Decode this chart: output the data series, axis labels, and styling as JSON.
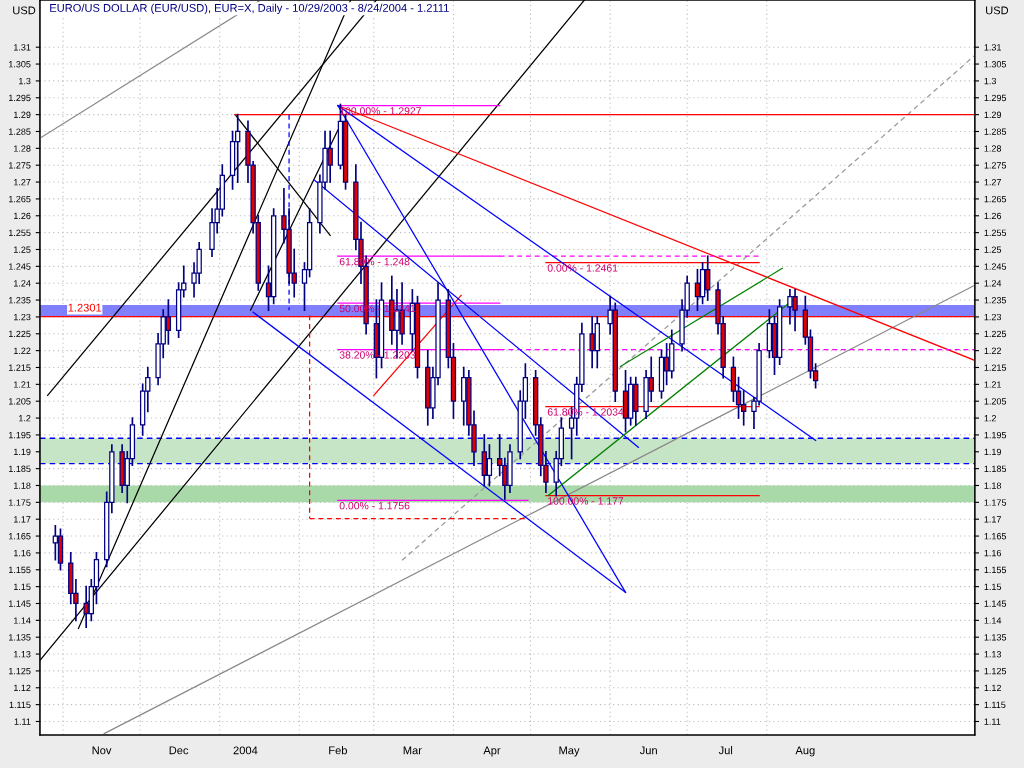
{
  "chart_data": {
    "type": "candlestick",
    "title": "EURO/US DOLLAR (EUR/USD), EUR=X, Daily - 10/29/2003 - 8/24/2004 - 1.2111",
    "ylabel": "USD",
    "y2label": "USD",
    "color": "#000080",
    "x": [
      "2003-10-29",
      "2003-10-31",
      "2003-11-04",
      "2003-11-06",
      "2003-11-10",
      "2003-11-12",
      "2003-11-14",
      "2003-11-18",
      "2003-11-20",
      "2003-11-24",
      "2003-11-26",
      "2003-11-28",
      "2003-12-02",
      "2003-12-04",
      "2003-12-08",
      "2003-12-10",
      "2003-12-12",
      "2003-12-16",
      "2003-12-18",
      "2003-12-22",
      "2003-12-24",
      "2003-12-29",
      "2003-12-31",
      "2004-01-02",
      "2004-01-06",
      "2004-01-08",
      "2004-01-12",
      "2004-01-14",
      "2004-01-16",
      "2004-01-20",
      "2004-01-22",
      "2004-01-26",
      "2004-01-28",
      "2004-01-30",
      "2004-02-03",
      "2004-02-05",
      "2004-02-09",
      "2004-02-11",
      "2004-02-13",
      "2004-02-17",
      "2004-02-19",
      "2004-02-23",
      "2004-02-25",
      "2004-02-27",
      "2004-03-02",
      "2004-03-04",
      "2004-03-08",
      "2004-03-10",
      "2004-03-12",
      "2004-03-16",
      "2004-03-18",
      "2004-03-22",
      "2004-03-24",
      "2004-03-26",
      "2004-03-30",
      "2004-04-01",
      "2004-04-05",
      "2004-04-07",
      "2004-04-09",
      "2004-04-13",
      "2004-04-15",
      "2004-04-19",
      "2004-04-21",
      "2004-04-23",
      "2004-04-27",
      "2004-04-29",
      "2004-05-03",
      "2004-05-05",
      "2004-05-07",
      "2004-05-11",
      "2004-05-13",
      "2004-05-17",
      "2004-05-19",
      "2004-05-21",
      "2004-05-25",
      "2004-05-27",
      "2004-06-01",
      "2004-06-03",
      "2004-06-07",
      "2004-06-09",
      "2004-06-11",
      "2004-06-15",
      "2004-06-17",
      "2004-06-21",
      "2004-06-23",
      "2004-06-25",
      "2004-06-29",
      "2004-07-01",
      "2004-07-05",
      "2004-07-07",
      "2004-07-09",
      "2004-07-13",
      "2004-07-15",
      "2004-07-19",
      "2004-07-21",
      "2004-07-23",
      "2004-07-27",
      "2004-07-29",
      "2004-08-02",
      "2004-08-04",
      "2004-08-06",
      "2004-08-10",
      "2004-08-12",
      "2004-08-16",
      "2004-08-18",
      "2004-08-20"
    ],
    "ohlc": [
      [
        1.163,
        1.168,
        1.158,
        1.165
      ],
      [
        1.165,
        1.167,
        1.155,
        1.157
      ],
      [
        1.157,
        1.16,
        1.145,
        1.148
      ],
      [
        1.148,
        1.152,
        1.14,
        1.145
      ],
      [
        1.145,
        1.15,
        1.138,
        1.142
      ],
      [
        1.142,
        1.152,
        1.14,
        1.15
      ],
      [
        1.15,
        1.16,
        1.145,
        1.158
      ],
      [
        1.158,
        1.178,
        1.156,
        1.175
      ],
      [
        1.175,
        1.192,
        1.172,
        1.19
      ],
      [
        1.19,
        1.192,
        1.178,
        1.18
      ],
      [
        1.18,
        1.19,
        1.175,
        1.188
      ],
      [
        1.188,
        1.2,
        1.186,
        1.198
      ],
      [
        1.198,
        1.21,
        1.195,
        1.208
      ],
      [
        1.208,
        1.215,
        1.202,
        1.212
      ],
      [
        1.212,
        1.225,
        1.21,
        1.222
      ],
      [
        1.222,
        1.232,
        1.218,
        1.23
      ],
      [
        1.23,
        1.235,
        1.222,
        1.226
      ],
      [
        1.226,
        1.24,
        1.224,
        1.238
      ],
      [
        1.238,
        1.245,
        1.236,
        1.24
      ],
      [
        1.24,
        1.246,
        1.236,
        1.243
      ],
      [
        1.243,
        1.252,
        1.24,
        1.25
      ],
      [
        1.25,
        1.262,
        1.248,
        1.258
      ],
      [
        1.258,
        1.268,
        1.255,
        1.262
      ],
      [
        1.262,
        1.275,
        1.26,
        1.272
      ],
      [
        1.272,
        1.285,
        1.268,
        1.282
      ],
      [
        1.282,
        1.29,
        1.27,
        1.285
      ],
      [
        1.285,
        1.288,
        1.27,
        1.275
      ],
      [
        1.275,
        1.276,
        1.255,
        1.258
      ],
      [
        1.258,
        1.26,
        1.238,
        1.24
      ],
      [
        1.24,
        1.245,
        1.232,
        1.236
      ],
      [
        1.236,
        1.262,
        1.234,
        1.26
      ],
      [
        1.26,
        1.268,
        1.252,
        1.256
      ],
      [
        1.256,
        1.262,
        1.24,
        1.243
      ],
      [
        1.243,
        1.25,
        1.236,
        1.24
      ],
      [
        1.24,
        1.246,
        1.232,
        1.244
      ],
      [
        1.244,
        1.262,
        1.242,
        1.258
      ],
      [
        1.258,
        1.272,
        1.255,
        1.27
      ],
      [
        1.27,
        1.285,
        1.268,
        1.28
      ],
      [
        1.28,
        1.285,
        1.27,
        1.275
      ],
      [
        1.275,
        1.293,
        1.274,
        1.288
      ],
      [
        1.288,
        1.29,
        1.268,
        1.27
      ],
      [
        1.27,
        1.275,
        1.25,
        1.253
      ],
      [
        1.253,
        1.258,
        1.24,
        1.245
      ],
      [
        1.245,
        1.248,
        1.225,
        1.228
      ],
      [
        1.228,
        1.235,
        1.212,
        1.218
      ],
      [
        1.218,
        1.24,
        1.215,
        1.235
      ],
      [
        1.235,
        1.242,
        1.222,
        1.226
      ],
      [
        1.226,
        1.238,
        1.218,
        1.232
      ],
      [
        1.232,
        1.24,
        1.222,
        1.225
      ],
      [
        1.225,
        1.238,
        1.22,
        1.234
      ],
      [
        1.234,
        1.236,
        1.212,
        1.215
      ],
      [
        1.215,
        1.22,
        1.198,
        1.203
      ],
      [
        1.203,
        1.215,
        1.2,
        1.212
      ],
      [
        1.212,
        1.24,
        1.21,
        1.235
      ],
      [
        1.235,
        1.238,
        1.215,
        1.218
      ],
      [
        1.218,
        1.222,
        1.2,
        1.205
      ],
      [
        1.205,
        1.215,
        1.198,
        1.212
      ],
      [
        1.212,
        1.214,
        1.195,
        1.198
      ],
      [
        1.198,
        1.202,
        1.186,
        1.19
      ],
      [
        1.19,
        1.195,
        1.18,
        1.183
      ],
      [
        1.183,
        1.192,
        1.18,
        1.188
      ],
      [
        1.188,
        1.195,
        1.183,
        1.186
      ],
      [
        1.186,
        1.188,
        1.176,
        1.18
      ],
      [
        1.18,
        1.192,
        1.178,
        1.19
      ],
      [
        1.19,
        1.208,
        1.188,
        1.205
      ],
      [
        1.205,
        1.216,
        1.2,
        1.212
      ],
      [
        1.212,
        1.214,
        1.195,
        1.198
      ],
      [
        1.198,
        1.2,
        1.183,
        1.186
      ],
      [
        1.186,
        1.19,
        1.178,
        1.181
      ],
      [
        1.181,
        1.19,
        1.177,
        1.188
      ],
      [
        1.188,
        1.2,
        1.186,
        1.197
      ],
      [
        1.197,
        1.203,
        1.188,
        1.2
      ],
      [
        1.2,
        1.212,
        1.195,
        1.21
      ],
      [
        1.21,
        1.228,
        1.208,
        1.225
      ],
      [
        1.225,
        1.23,
        1.215,
        1.22
      ],
      [
        1.22,
        1.23,
        1.215,
        1.228
      ],
      [
        1.228,
        1.236,
        1.225,
        1.232
      ],
      [
        1.232,
        1.234,
        1.205,
        1.208
      ],
      [
        1.208,
        1.214,
        1.196,
        1.2
      ],
      [
        1.2,
        1.212,
        1.198,
        1.21
      ],
      [
        1.21,
        1.212,
        1.198,
        1.202
      ],
      [
        1.202,
        1.214,
        1.2,
        1.212
      ],
      [
        1.212,
        1.218,
        1.205,
        1.208
      ],
      [
        1.208,
        1.22,
        1.206,
        1.218
      ],
      [
        1.218,
        1.222,
        1.21,
        1.214
      ],
      [
        1.214,
        1.226,
        1.212,
        1.222
      ],
      [
        1.222,
        1.235,
        1.22,
        1.232
      ],
      [
        1.232,
        1.242,
        1.23,
        1.24
      ],
      [
        1.24,
        1.244,
        1.232,
        1.236
      ],
      [
        1.236,
        1.246,
        1.234,
        1.244
      ],
      [
        1.244,
        1.248,
        1.235,
        1.238
      ],
      [
        1.238,
        1.24,
        1.225,
        1.228
      ],
      [
        1.228,
        1.23,
        1.212,
        1.215
      ],
      [
        1.215,
        1.218,
        1.205,
        1.208
      ],
      [
        1.208,
        1.212,
        1.2,
        1.204
      ],
      [
        1.204,
        1.208,
        1.198,
        1.202
      ],
      [
        1.202,
        1.206,
        1.197,
        1.205
      ],
      [
        1.205,
        1.222,
        1.204,
        1.22
      ],
      [
        1.22,
        1.232,
        1.218,
        1.228
      ],
      [
        1.228,
        1.23,
        1.213,
        1.218
      ],
      [
        1.218,
        1.235,
        1.216,
        1.233
      ],
      [
        1.233,
        1.238,
        1.228,
        1.236
      ],
      [
        1.236,
        1.238,
        1.226,
        1.232
      ],
      [
        1.232,
        1.236,
        1.222,
        1.224
      ],
      [
        1.224,
        1.226,
        1.212,
        1.214
      ],
      [
        1.214,
        1.216,
        1.209,
        1.2111
      ]
    ],
    "series": [
      {
        "type": "line",
        "color": "#000000",
        "x": [
          "2003-11-07",
          "2004-02-21"
        ],
        "values": [
          1.1376,
          1.324
        ]
      },
      {
        "type": "line",
        "color": "#000000",
        "x": [
          "2003-10-26",
          "2004-03-02"
        ],
        "values": [
          1.2067,
          1.324
        ]
      },
      {
        "type": "line",
        "color": "#000000",
        "x": [
          "2003-10-23",
          "2004-05-22"
        ],
        "values": [
          1.1281,
          1.324
        ]
      },
      {
        "type": "line",
        "color": "#000000",
        "x": [
          "2004-01-07",
          "2004-02-13"
        ],
        "values": [
          1.29,
          1.2542
        ]
      },
      {
        "type": "line",
        "color": "#000000",
        "x": [
          "2004-01-13",
          "2004-02-16"
        ],
        "values": [
          1.232,
          1.2854
        ]
      },
      {
        "type": "line",
        "color": "#888888",
        "x": [
          "2003-10-23",
          "2004-01-17"
        ],
        "values": [
          1.283,
          1.324
        ]
      },
      {
        "type": "line",
        "color": "#888888",
        "x": [
          "2003-11-17",
          "2004-10-21"
        ],
        "values": [
          1.1064,
          1.2394
        ]
      },
      {
        "type": "line",
        "color": "#999999",
        "line_style": "dashed",
        "x": [
          "2004-03-12",
          "2004-10-21"
        ],
        "values": [
          1.1578,
          1.3076
        ]
      },
      {
        "type": "line",
        "color": "#ff0000",
        "x": [
          "2004-01-07",
          "2004-10-21"
        ],
        "values": [
          1.29,
          1.29
        ]
      },
      {
        "type": "line",
        "color": "#ff0000",
        "x": [
          "2004-02-16",
          "2004-10-21"
        ],
        "values": [
          1.2927,
          1.2171
        ]
      },
      {
        "type": "line",
        "color": "#ff0000",
        "x": [
          "2004-05-07",
          "2004-07-29"
        ],
        "values": [
          1.2461,
          1.2461
        ]
      },
      {
        "type": "line",
        "color": "#ff0000",
        "x": [
          "2004-05-07",
          "2004-07-29"
        ],
        "values": [
          1.2034,
          1.2034
        ]
      },
      {
        "type": "line",
        "color": "#ff0000",
        "x": [
          "2004-05-07",
          "2004-07-29"
        ],
        "values": [
          1.177,
          1.177
        ]
      },
      {
        "type": "line",
        "color": "#ff0000",
        "line_style": "dashed",
        "x": [
          "2004-02-05",
          "2004-02-05"
        ],
        "values": [
          1.2305,
          1.1702
        ]
      },
      {
        "type": "line",
        "color": "#ff0000",
        "line_style": "dashed",
        "x": [
          "2004-02-05",
          "2004-04-30"
        ],
        "values": [
          1.1702,
          1.1702
        ]
      },
      {
        "type": "line",
        "color": "#ff0000",
        "x": [
          "2004-03-01",
          "2004-04-04"
        ],
        "values": [
          1.2067,
          1.2364
        ]
      },
      {
        "type": "line",
        "color": "#0000ff",
        "line_style": "dashed",
        "x": [
          "2004-01-28",
          "2004-01-28"
        ],
        "values": [
          1.29,
          1.232
        ]
      },
      {
        "type": "line",
        "color": "#ff00ff",
        "x": [
          "2004-02-16",
          "2004-04-19"
        ],
        "values": [
          1.2927,
          1.2927
        ]
      },
      {
        "type": "line",
        "color": "#ff00ff",
        "x": [
          "2004-02-16",
          "2004-04-19"
        ],
        "values": [
          1.248,
          1.248
        ]
      },
      {
        "type": "line",
        "color": "#ff00ff",
        "x": [
          "2004-02-16",
          "2004-04-19"
        ],
        "values": [
          1.2341,
          1.2341
        ]
      },
      {
        "type": "line",
        "color": "#ff00ff",
        "x": [
          "2004-02-16",
          "2004-04-19"
        ],
        "values": [
          1.2203,
          1.2203
        ]
      },
      {
        "type": "line",
        "color": "#ff00ff",
        "x": [
          "2004-02-16",
          "2004-04-30"
        ],
        "values": [
          1.1756,
          1.1756
        ]
      },
      {
        "type": "line",
        "color": "#ff00ff",
        "line_style": "dashed",
        "x": [
          "2004-04-19",
          "2004-07-29"
        ],
        "values": [
          1.248,
          1.248
        ]
      },
      {
        "type": "line",
        "color": "#ff00ff",
        "line_style": "dashed",
        "x": [
          "2004-04-19",
          "2004-10-21"
        ],
        "values": [
          1.2203,
          1.2203
        ]
      },
      {
        "type": "line",
        "color": "#0000ff",
        "x": [
          "2004-02-16",
          "2004-06-07"
        ],
        "values": [
          1.2927,
          1.1483
        ]
      },
      {
        "type": "line",
        "color": "#0000ff",
        "x": [
          "2004-02-16",
          "2004-08-20"
        ],
        "values": [
          1.2927,
          1.1934
        ]
      },
      {
        "type": "line",
        "color": "#0000ff",
        "x": [
          "2004-01-14",
          "2004-06-07"
        ],
        "values": [
          1.2314,
          1.1483
        ]
      },
      {
        "type": "line",
        "color": "#0000ff",
        "x": [
          "2004-02-07",
          "2004-06-12"
        ],
        "values": [
          1.2705,
          1.1913
        ]
      },
      {
        "type": "line",
        "color": "#008000",
        "x": [
          "2004-06-05",
          "2004-08-07"
        ],
        "values": [
          1.2153,
          1.2444
        ]
      },
      {
        "type": "line",
        "color": "#008000",
        "x": [
          "2004-05-08",
          "2004-08-11"
        ],
        "values": [
          1.1771,
          1.2349
        ]
      }
    ],
    "ref_lines": [
      {
        "axis": "y",
        "value": 1.2301,
        "label": "1.2301",
        "color": "#ff0000",
        "line_style": "solid"
      },
      {
        "axis": "y",
        "value": 1.194,
        "color": "#0000ff",
        "line_style": "dashed"
      },
      {
        "axis": "y",
        "value": 1.1865,
        "color": "#0000ff",
        "line_style": "dashed"
      }
    ],
    "bands": [
      {
        "axis": "y",
        "from": 1.2301,
        "to": 1.2335,
        "color": "#8080ff"
      },
      {
        "axis": "y",
        "from": 1.1865,
        "to": 1.194,
        "color": "#c6e4c6"
      },
      {
        "axis": "y",
        "from": 1.175,
        "to": 1.18,
        "color": "#a9d8a9"
      }
    ],
    "annotations": [
      {
        "text": "100.00% - 1.2927",
        "x": "2004-02-16",
        "y": 1.2927
      },
      {
        "text": "61.80% - 1.248",
        "x": "2004-02-16",
        "y": 1.248
      },
      {
        "text": "50.00% - 1.2341",
        "x": "2004-02-16",
        "y": 1.2341
      },
      {
        "text": "38.20% - 1.2203",
        "x": "2004-02-16",
        "y": 1.2203
      },
      {
        "text": "0.00% - 1.1756",
        "x": "2004-02-16",
        "y": 1.1756
      },
      {
        "text": "0.00% - 1.2461",
        "x": "2004-05-07",
        "y": 1.2461
      },
      {
        "text": "61.80% - 1.2034",
        "x": "2004-05-07",
        "y": 1.2034
      },
      {
        "text": "100.00% - 1.177",
        "x": "2004-05-07",
        "y": 1.177
      }
    ],
    "xlim": [
      "2003-10-23",
      "2004-10-21"
    ],
    "xticks": [
      {
        "value": "2003-11-01",
        "label": null
      },
      {
        "value": "2003-11-16",
        "label": "Nov"
      },
      {
        "value": "2003-12-01",
        "label": null
      },
      {
        "value": "2003-12-16",
        "label": "Dec"
      },
      {
        "value": "2004-01-01",
        "label": null
      },
      {
        "value": "2004-01-11",
        "label": "2004"
      },
      {
        "value": "2004-02-01",
        "label": null
      },
      {
        "value": "2004-02-16",
        "label": "Feb"
      },
      {
        "value": "2004-03-01",
        "label": null
      },
      {
        "value": "2004-03-16",
        "label": "Mar"
      },
      {
        "value": "2004-04-01",
        "label": null
      },
      {
        "value": "2004-04-16",
        "label": "Apr"
      },
      {
        "value": "2004-05-01",
        "label": null
      },
      {
        "value": "2004-05-16",
        "label": "May"
      },
      {
        "value": "2004-06-01",
        "label": null
      },
      {
        "value": "2004-06-16",
        "label": "Jun"
      },
      {
        "value": "2004-07-01",
        "label": null
      },
      {
        "value": "2004-07-16",
        "label": "Jul"
      },
      {
        "value": "2004-08-01",
        "label": null
      },
      {
        "value": "2004-08-16",
        "label": "Aug"
      }
    ],
    "ylim": [
      1.106,
      1.324
    ],
    "yticks": [
      1.11,
      1.115,
      1.12,
      1.125,
      1.13,
      1.135,
      1.14,
      1.145,
      1.15,
      1.155,
      1.16,
      1.165,
      1.17,
      1.175,
      1.18,
      1.185,
      1.19,
      1.195,
      1.2,
      1.205,
      1.21,
      1.215,
      1.22,
      1.225,
      1.23,
      1.235,
      1.24,
      1.245,
      1.25,
      1.255,
      1.26,
      1.265,
      1.27,
      1.275,
      1.28,
      1.285,
      1.29,
      1.295,
      1.3,
      1.305,
      1.31
    ],
    "y2lim": [
      1.106,
      1.324
    ],
    "y2ticks": [
      1.11,
      1.115,
      1.12,
      1.125,
      1.13,
      1.135,
      1.14,
      1.145,
      1.15,
      1.155,
      1.16,
      1.165,
      1.17,
      1.175,
      1.18,
      1.185,
      1.19,
      1.195,
      1.2,
      1.205,
      1.21,
      1.215,
      1.22,
      1.225,
      1.23,
      1.235,
      1.24,
      1.245,
      1.25,
      1.255,
      1.26,
      1.265,
      1.27,
      1.275,
      1.28,
      1.285,
      1.29,
      1.295,
      1.3,
      1.305,
      1.31
    ],
    "grid": true
  }
}
